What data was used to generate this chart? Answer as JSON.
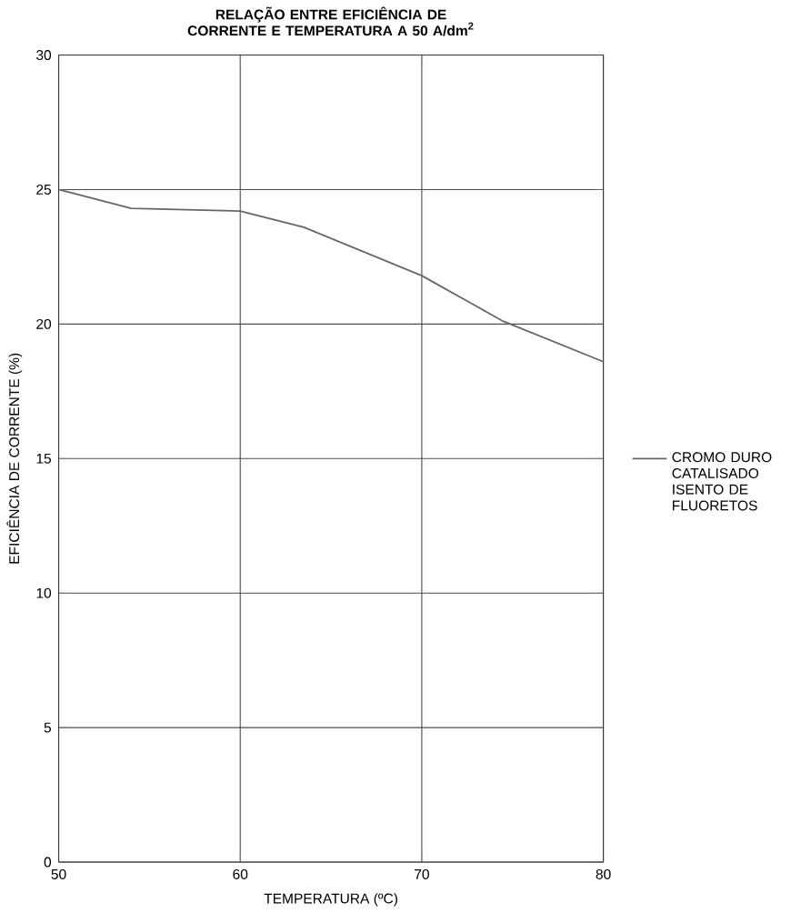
{
  "chart_data": {
    "type": "line",
    "title": "RELAÇÃO ENTRE EFICIÊNCIA DE CORRENTE E TEMPERATURA A 50 A/dm$^{2}$",
    "xlabel": "TEMPERATURA (ºC)",
    "ylabel": "EFICIÊNCIA DE CORRENTE (%)",
    "x": [
      50,
      54,
      60,
      63.5,
      70,
      74.5,
      80
    ],
    "series": [
      {
        "name": "CROMO DURO CATALISADO ISENTO DE FLUORETOS",
        "color": "#666666",
        "values": [
          25,
          24.3,
          24.2,
          23.6,
          21.8,
          20.1,
          18.6
        ]
      }
    ],
    "xlim": [
      50,
      80
    ],
    "xticks": [
      50,
      60,
      70,
      80
    ],
    "ylim": [
      0,
      30
    ],
    "yticks": [
      0,
      5,
      10,
      15,
      20,
      25,
      30
    ],
    "grid": true,
    "legend": "right",
    "marker": "none",
    "line_style": "solid"
  }
}
